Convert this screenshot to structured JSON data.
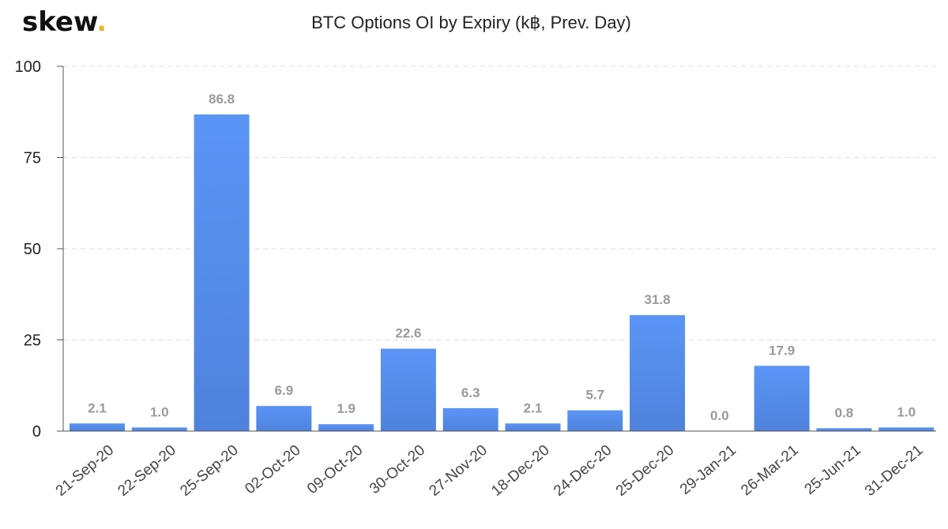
{
  "brand": {
    "name": "skew",
    "dot": ".",
    "dot_color": "#f2b234"
  },
  "chart_data": {
    "type": "bar",
    "title": "BTC Options OI by Expiry (k฿, Prev. Day)",
    "xlabel": "",
    "ylabel": "",
    "ylim": [
      0,
      100
    ],
    "yticks": [
      0,
      25,
      50,
      75,
      100
    ],
    "grid": true,
    "bar_color_top": "#5b95f6",
    "bar_color_bottom": "#4f82dc",
    "categories": [
      "21-Sep-20",
      "22-Sep-20",
      "25-Sep-20",
      "02-Oct-20",
      "09-Oct-20",
      "30-Oct-20",
      "27-Nov-20",
      "18-Dec-20",
      "24-Dec-20",
      "25-Dec-20",
      "29-Jan-21",
      "26-Mar-21",
      "25-Jun-21",
      "31-Dec-21"
    ],
    "values": [
      2.1,
      1.0,
      86.8,
      6.9,
      1.9,
      22.6,
      6.3,
      2.1,
      5.7,
      31.8,
      0.0,
      17.9,
      0.8,
      1.0
    ],
    "data_labels": [
      "2.1",
      "1.0",
      "86.8",
      "6.9",
      "1.9",
      "22.6",
      "6.3",
      "2.1",
      "5.7",
      "31.8",
      "0.0",
      "17.9",
      "0.8",
      "1.0"
    ]
  }
}
